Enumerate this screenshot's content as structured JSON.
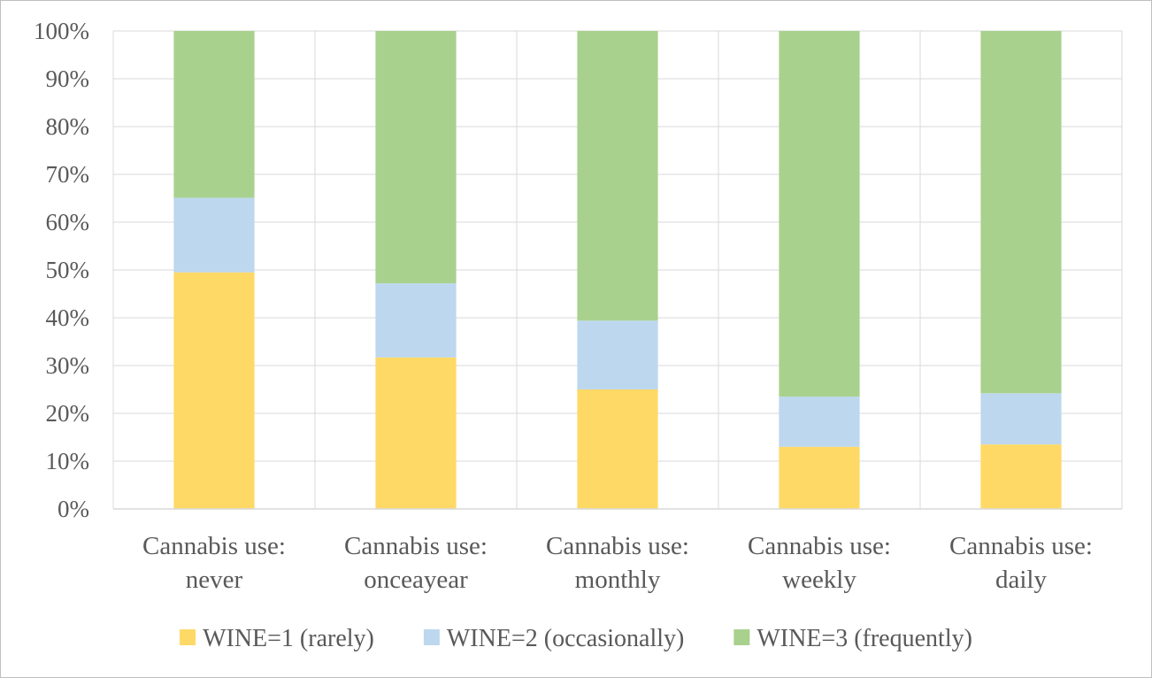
{
  "chart_data": {
    "type": "bar",
    "stacked": true,
    "percent": true,
    "title": "",
    "xlabel": "",
    "ylabel": "",
    "ylim": [
      0,
      100
    ],
    "yticks": [
      "0%",
      "10%",
      "20%",
      "30%",
      "40%",
      "50%",
      "60%",
      "70%",
      "80%",
      "90%",
      "100%"
    ],
    "grid": true,
    "legend_position": "bottom",
    "categories": [
      [
        "Cannabis use:",
        "never"
      ],
      [
        "Cannabis use:",
        "onceayear"
      ],
      [
        "Cannabis use:",
        "monthly"
      ],
      [
        "Cannabis use:",
        "weekly"
      ],
      [
        "Cannabis use:",
        "daily"
      ]
    ],
    "series": [
      {
        "name": "WINE=1 (rarely)",
        "color": "#ffd966",
        "values": [
          49.5,
          31.7,
          25.0,
          13.0,
          13.5
        ]
      },
      {
        "name": "WINE=2 (occasionally)",
        "color": "#bdd7ee",
        "values": [
          15.6,
          15.5,
          14.4,
          10.5,
          10.7
        ]
      },
      {
        "name": "WINE=3 (frequently)",
        "color": "#a9d18e",
        "values": [
          34.9,
          52.8,
          60.6,
          76.5,
          75.8
        ]
      }
    ]
  }
}
